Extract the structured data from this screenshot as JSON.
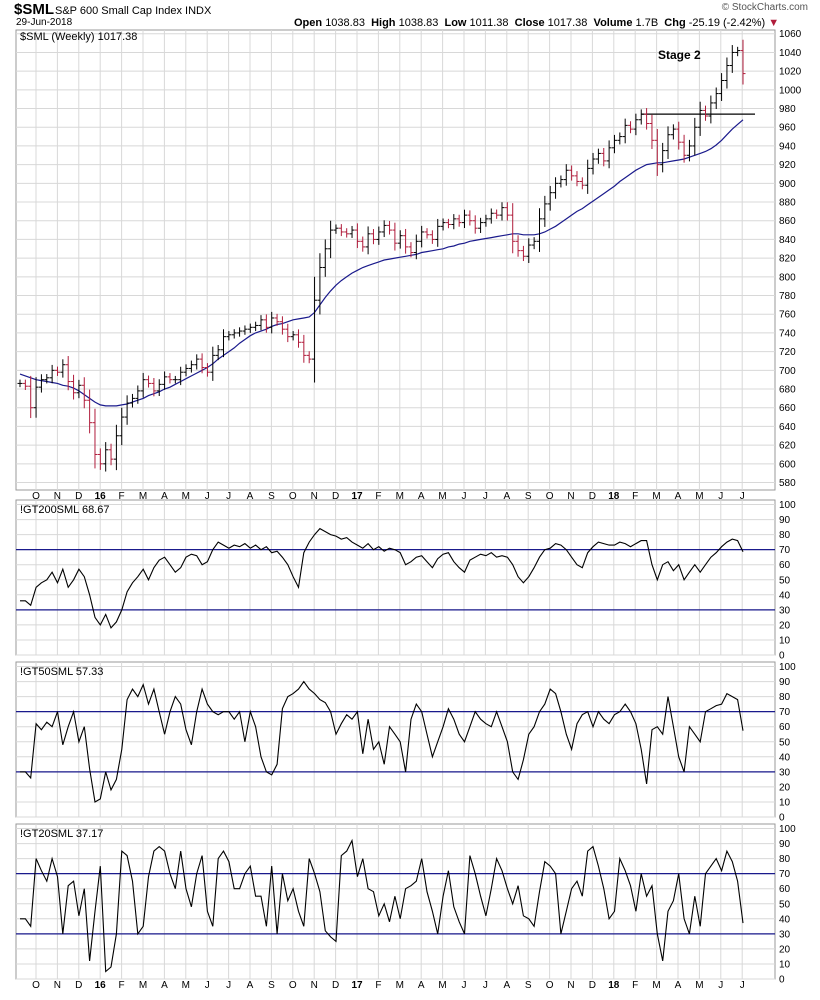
{
  "header": {
    "symbol": "$SML",
    "name": "S&P 600 Small Cap Index",
    "exchange": "INDX",
    "date": "29-Jun-2018",
    "logo": "© StockCharts.com",
    "quote": {
      "open_label": "Open",
      "open": "1038.83",
      "high_label": "High",
      "high": "1038.83",
      "low_label": "Low",
      "low": "1011.38",
      "close_label": "Close",
      "close": "1017.38",
      "volume_label": "Volume",
      "volume": "1.7B",
      "chg_label": "Chg",
      "chg": "-25.19 (-2.42%)",
      "chg_arrow": "▼"
    }
  },
  "colors": {
    "grid": "#d8d8d8",
    "up_bar": "#000000",
    "down_bar": "#b01c3b",
    "ma": "#1a1a8c",
    "ref_line": "#1a1a8c",
    "indicator": "#000000"
  },
  "chart_data": [
    {
      "type": "ohlc",
      "panel": "price",
      "label": "$SML (Weekly) 1017.38",
      "annotation": "Stage 2",
      "y_ticks": [
        580,
        600,
        620,
        640,
        660,
        680,
        700,
        720,
        740,
        760,
        780,
        800,
        820,
        840,
        860,
        880,
        900,
        920,
        940,
        960,
        980,
        1000,
        1020,
        1040,
        1060
      ],
      "ylim": [
        572,
        1064
      ],
      "x_ticks": [
        "O",
        "N",
        "D",
        "16",
        "F",
        "M",
        "A",
        "M",
        "J",
        "J",
        "A",
        "S",
        "O",
        "N",
        "D",
        "17",
        "F",
        "M",
        "A",
        "M",
        "J",
        "J",
        "A",
        "S",
        "O",
        "N",
        "D",
        "18",
        "F",
        "M",
        "A",
        "M",
        "J",
        "J"
      ],
      "close": [
        686,
        683,
        660,
        682,
        690,
        692,
        700,
        698,
        706,
        688,
        676,
        684,
        668,
        644,
        610,
        600,
        615,
        605,
        630,
        650,
        665,
        670,
        678,
        690,
        686,
        678,
        685,
        693,
        690,
        690,
        698,
        702,
        706,
        712,
        703,
        698,
        716,
        722,
        736,
        738,
        740,
        742,
        744,
        746,
        748,
        754,
        746,
        756,
        752,
        744,
        736,
        738,
        730,
        716,
        712,
        775,
        810,
        830,
        850,
        852,
        848,
        846,
        850,
        838,
        832,
        846,
        840,
        848,
        855,
        850,
        836,
        844,
        832,
        826,
        838,
        848,
        845,
        840,
        854,
        858,
        856,
        862,
        858,
        866,
        860,
        852,
        858,
        862,
        868,
        866,
        874,
        866,
        838,
        828,
        822,
        834,
        838,
        862,
        878,
        890,
        900,
        904,
        914,
        908,
        902,
        898,
        916,
        926,
        932,
        924,
        938,
        946,
        950,
        962,
        958,
        968,
        974,
        964,
        946,
        920,
        935,
        952,
        958,
        944,
        930,
        940,
        960,
        978,
        972,
        986,
        996,
        1010,
        1026,
        1040,
        1042,
        1017.38
      ],
      "ma": [
        696,
        694,
        692,
        690,
        689,
        688,
        687,
        686,
        684,
        683,
        681,
        678,
        674,
        670,
        666,
        663,
        662,
        662,
        662,
        663,
        664,
        666,
        668,
        670,
        673,
        675,
        677,
        680,
        682,
        685,
        688,
        691,
        694,
        697,
        700,
        703,
        707,
        712,
        716,
        720,
        724,
        729,
        733,
        737,
        740,
        742,
        744,
        747,
        749,
        750,
        752,
        754,
        755,
        756,
        757,
        762,
        770,
        778,
        785,
        791,
        796,
        800,
        804,
        807,
        810,
        812,
        814,
        816,
        818,
        819,
        820,
        821,
        822,
        823,
        824,
        826,
        827,
        828,
        829,
        830,
        832,
        833,
        835,
        836,
        838,
        839,
        840,
        841,
        842,
        843,
        844,
        845,
        846,
        846,
        845,
        845,
        845,
        846,
        848,
        851,
        854,
        858,
        862,
        866,
        870,
        873,
        877,
        881,
        885,
        889,
        893,
        897,
        902,
        906,
        910,
        914,
        917,
        920,
        921,
        922,
        922,
        923,
        924,
        925,
        926,
        928,
        930,
        932,
        934,
        937,
        941,
        946,
        952,
        958,
        963,
        968
      ]
    },
    {
      "type": "line",
      "panel": "ind1",
      "label": "!GT200SML 68.67",
      "y_ticks": [
        0,
        10,
        20,
        30,
        40,
        50,
        60,
        70,
        80,
        90,
        100
      ],
      "ylim": [
        0,
        103
      ],
      "ref_lines": [
        30,
        70
      ],
      "values": [
        36,
        36,
        33,
        45,
        48,
        50,
        55,
        48,
        57,
        45,
        50,
        57,
        52,
        40,
        25,
        20,
        27,
        18,
        22,
        30,
        42,
        48,
        52,
        57,
        50,
        58,
        63,
        65,
        60,
        55,
        58,
        65,
        67,
        66,
        60,
        62,
        70,
        75,
        73,
        71,
        73,
        72,
        74,
        71,
        73,
        70,
        72,
        68,
        69,
        65,
        60,
        52,
        45,
        68,
        75,
        80,
        84,
        82,
        80,
        79,
        77,
        78,
        75,
        73,
        71,
        74,
        70,
        72,
        69,
        71,
        70,
        68,
        60,
        62,
        65,
        66,
        62,
        58,
        64,
        67,
        68,
        62,
        58,
        55,
        63,
        65,
        67,
        66,
        68,
        65,
        66,
        65,
        60,
        52,
        48,
        52,
        58,
        65,
        70,
        71,
        74,
        73,
        70,
        65,
        60,
        58,
        68,
        72,
        75,
        74,
        73,
        73,
        75,
        74,
        72,
        74,
        76,
        76,
        60,
        50,
        60,
        62,
        56,
        60,
        50,
        55,
        60,
        55,
        60,
        65,
        68,
        72,
        75,
        77,
        76,
        68.67
      ]
    },
    {
      "type": "line",
      "panel": "ind2",
      "label": "!GT50SML 57.33",
      "y_ticks": [
        0,
        10,
        20,
        30,
        40,
        50,
        60,
        70,
        80,
        90,
        100
      ],
      "ylim": [
        0,
        103
      ],
      "ref_lines": [
        30,
        70
      ],
      "values": [
        30,
        30,
        26,
        62,
        58,
        63,
        60,
        70,
        48,
        60,
        70,
        50,
        60,
        32,
        10,
        12,
        30,
        18,
        25,
        45,
        78,
        85,
        80,
        88,
        75,
        85,
        70,
        55,
        70,
        80,
        75,
        58,
        48,
        70,
        85,
        75,
        70,
        68,
        70,
        70,
        65,
        70,
        50,
        70,
        60,
        40,
        30,
        28,
        35,
        72,
        80,
        82,
        85,
        90,
        85,
        82,
        78,
        76,
        70,
        55,
        62,
        68,
        65,
        70,
        42,
        65,
        45,
        50,
        35,
        60,
        55,
        50,
        30,
        65,
        75,
        70,
        55,
        40,
        50,
        60,
        72,
        65,
        55,
        50,
        60,
        70,
        65,
        62,
        60,
        70,
        60,
        50,
        30,
        25,
        38,
        55,
        60,
        70,
        75,
        85,
        82,
        70,
        55,
        45,
        62,
        68,
        70,
        60,
        70,
        65,
        62,
        68,
        70,
        75,
        70,
        62,
        45,
        22,
        58,
        60,
        55,
        80,
        60,
        40,
        30,
        60,
        55,
        50,
        70,
        72,
        74,
        75,
        82,
        80,
        78,
        57.33
      ]
    },
    {
      "type": "line",
      "panel": "ind3",
      "label": "!GT20SML 37.17",
      "y_ticks": [
        0,
        10,
        20,
        30,
        40,
        50,
        60,
        70,
        80,
        90,
        100
      ],
      "ylim": [
        0,
        103
      ],
      "ref_lines": [
        30,
        70
      ],
      "values": [
        40,
        40,
        35,
        80,
        72,
        65,
        80,
        68,
        30,
        62,
        65,
        42,
        60,
        12,
        45,
        75,
        5,
        8,
        30,
        85,
        82,
        65,
        30,
        35,
        68,
        85,
        88,
        85,
        70,
        60,
        85,
        60,
        48,
        70,
        82,
        45,
        35,
        80,
        85,
        78,
        60,
        60,
        70,
        75,
        55,
        55,
        35,
        75,
        30,
        70,
        52,
        60,
        45,
        35,
        80,
        70,
        58,
        32,
        28,
        25,
        82,
        85,
        92,
        68,
        80,
        60,
        58,
        42,
        50,
        38,
        55,
        40,
        60,
        62,
        65,
        80,
        58,
        45,
        30,
        55,
        72,
        48,
        38,
        30,
        82,
        70,
        55,
        42,
        60,
        80,
        72,
        60,
        50,
        62,
        42,
        40,
        35,
        58,
        78,
        75,
        70,
        30,
        45,
        60,
        65,
        55,
        85,
        88,
        75,
        60,
        40,
        45,
        80,
        72,
        62,
        45,
        70,
        55,
        62,
        30,
        12,
        45,
        52,
        70,
        40,
        30,
        55,
        35,
        70,
        75,
        80,
        72,
        85,
        78,
        65,
        37.17
      ]
    }
  ]
}
